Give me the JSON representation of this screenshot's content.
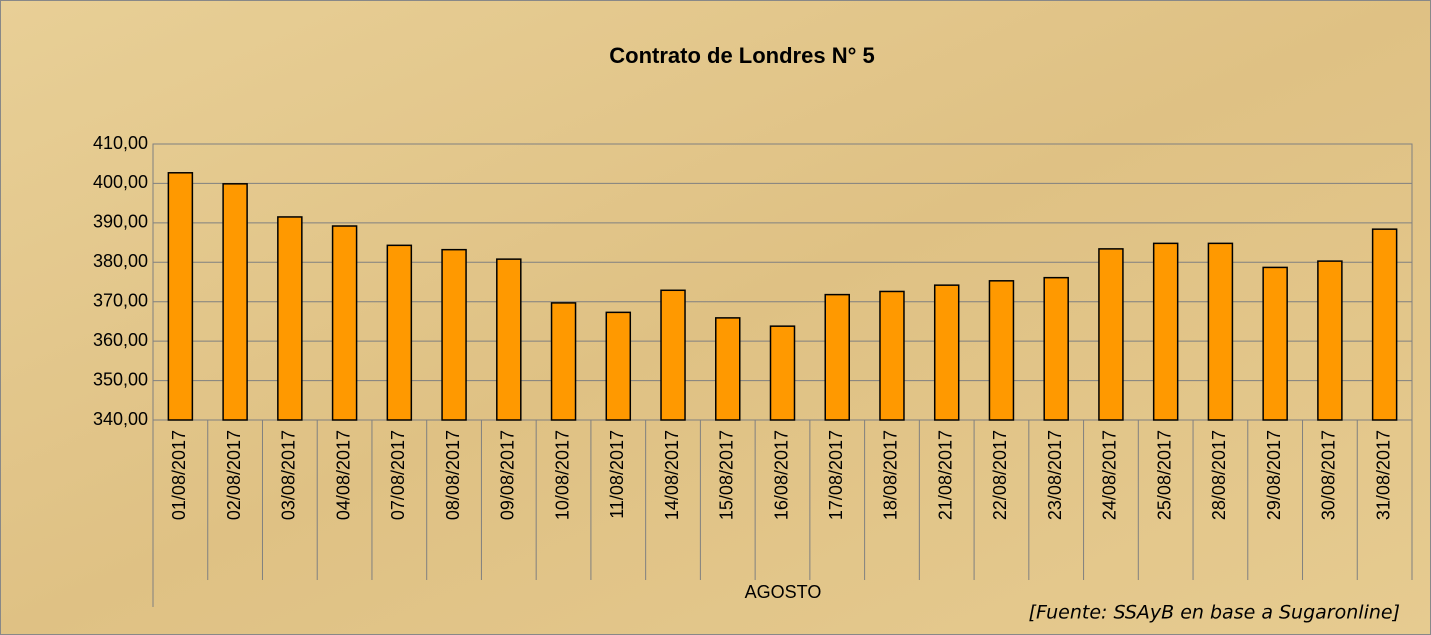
{
  "chart_data": {
    "type": "bar",
    "title": "Contrato de Londres N° 5",
    "x_label": "AGOSTO",
    "source": "[Fuente: SSAyB en base a Sugaronline]",
    "categories": [
      "01/08/2017",
      "02/08/2017",
      "03/08/2017",
      "04/08/2017",
      "07/08/2017",
      "08/08/2017",
      "09/08/2017",
      "10/08/2017",
      "11/08/2017",
      "14/08/2017",
      "15/08/2017",
      "16/08/2017",
      "17/08/2017",
      "18/08/2017",
      "21/08/2017",
      "22/08/2017",
      "23/08/2017",
      "24/08/2017",
      "25/08/2017",
      "28/08/2017",
      "29/08/2017",
      "30/08/2017",
      "31/08/2017"
    ],
    "values": [
      402.7,
      399.9,
      391.5,
      389.2,
      384.3,
      383.2,
      380.8,
      369.7,
      367.3,
      372.9,
      365.9,
      363.8,
      371.8,
      372.6,
      374.2,
      375.3,
      376.1,
      383.4,
      384.8,
      384.8,
      378.7,
      380.3,
      388.4
    ],
    "color": "#ff9900",
    "ylim": [
      340,
      410
    ],
    "yticks": [
      {
        "value": 340,
        "label": "340,00"
      },
      {
        "value": 350,
        "label": "350,00"
      },
      {
        "value": 360,
        "label": "360,00"
      },
      {
        "value": 370,
        "label": "370,00"
      },
      {
        "value": 380,
        "label": "380,00"
      },
      {
        "value": 390,
        "label": "390,00"
      },
      {
        "value": 400,
        "label": "400,00"
      },
      {
        "value": 410,
        "label": "410,00"
      }
    ],
    "grid": true
  }
}
